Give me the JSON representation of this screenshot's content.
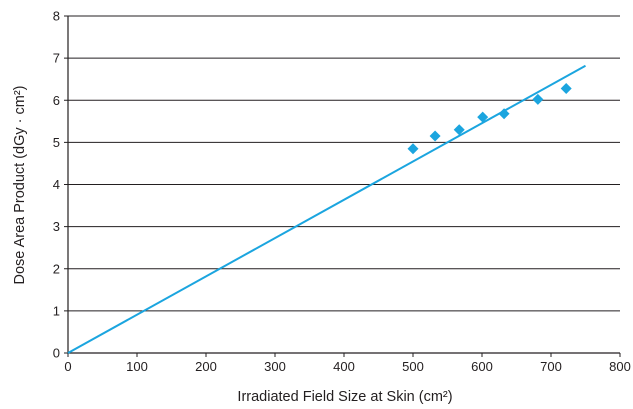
{
  "chart_data": {
    "type": "scatter",
    "title": "",
    "xlabel": "Irradiated Field Size at Skin (cm²)",
    "ylabel": "Dose Area Product (dGy · cm²)",
    "xlim": [
      0,
      800
    ],
    "ylim": [
      0,
      8
    ],
    "x_ticks": [
      "0",
      "100",
      "200",
      "300",
      "400",
      "500",
      "600",
      "700",
      "800"
    ],
    "y_ticks": [
      "0",
      "1",
      "2",
      "3",
      "4",
      "5",
      "6",
      "7",
      "8"
    ],
    "grid": "horizontal",
    "colors": {
      "points": "#1ba5df",
      "trendline": "#1ba5df",
      "axes": "#231f20"
    },
    "series": [
      {
        "kind": "points",
        "marker": "diamond",
        "points": [
          {
            "x": 500,
            "y": 4.85
          },
          {
            "x": 532,
            "y": 5.15
          },
          {
            "x": 567,
            "y": 5.3
          },
          {
            "x": 601,
            "y": 5.6
          },
          {
            "x": 632,
            "y": 5.68
          },
          {
            "x": 681,
            "y": 6.02
          },
          {
            "x": 722,
            "y": 6.28
          }
        ]
      },
      {
        "kind": "trendline",
        "points": [
          {
            "x": 0,
            "y": 0
          },
          {
            "x": 750,
            "y": 6.82
          }
        ]
      }
    ]
  }
}
